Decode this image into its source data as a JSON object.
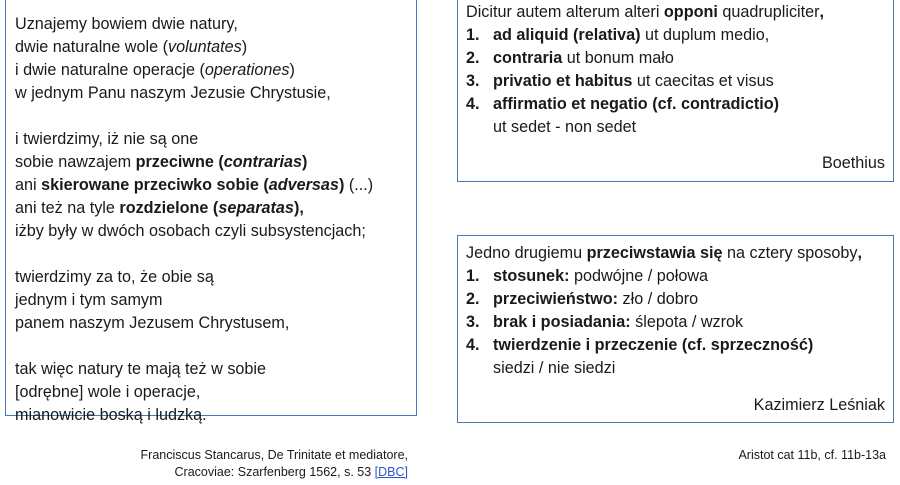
{
  "left": {
    "p1": [
      "Uznajemy bowiem dwie natury,",
      "dwie naturalne wole (",
      "voluntates",
      ")",
      "i dwie naturalne operacje (",
      "operationes",
      ")",
      "w jednym Panu naszym Jezusie Chrystusie,"
    ],
    "p2": {
      "l1": "i twierdzimy, iż nie są one",
      "l2a": "sobie nawzajem ",
      "l2b": "przeciwne (",
      "l2c": "contrarias",
      "l2d": ")",
      "l3a": "ani ",
      "l3b": "skierowane przeciwko sobie (",
      "l3c": "adversas",
      "l3d": ")",
      "l3e": " (...)",
      "l4a": "ani też na tyle ",
      "l4b": "rozdzielone (",
      "l4c": "separatas",
      "l4d": "),",
      "l5": "iżby były w dwóch osobach czyli subsystencjach;"
    },
    "p3": [
      "twierdzimy za to, że obie są",
      "jednym i tym samym",
      "panem naszym Jezusem Chrystusem,"
    ],
    "p4": [
      "tak więc natury te mają też w sobie",
      "[odrębne] wole i operacje,",
      "mianowicie boską i ludzką."
    ]
  },
  "latin": {
    "intro_a": "Dicitur autem alterum alteri ",
    "intro_b": "opponi",
    "intro_c": " quadrupliciter",
    "intro_d": ",",
    "items": [
      {
        "num": "1.",
        "bold": "ad aliquid (relativa)",
        "rest": " ut duplum medio,"
      },
      {
        "num": "2.",
        "bold": "contraria",
        "rest": " ut bonum mało"
      },
      {
        "num": "3.",
        "bold": "privatio et habitus",
        "rest": " ut caecitas et visus"
      },
      {
        "num": "4.",
        "bold": "affirmatio et negatio (cf. contradictio)",
        "rest": ""
      }
    ],
    "tail": "ut sedet - non sedet",
    "author": "Boethius"
  },
  "polish": {
    "intro_a": "Jedno drugiemu ",
    "intro_b": "przeciwstawia się",
    "intro_c": " na cztery sposoby",
    "intro_d": ",",
    "items": [
      {
        "num": "1.",
        "bold": "stosunek:",
        "rest": " podwójne / połowa"
      },
      {
        "num": "2.",
        "bold": "przeciwieństwo:",
        "rest": " zło / dobro"
      },
      {
        "num": "3.",
        "bold": "brak i posiadania:",
        "rest": " ślepota / wzrok"
      },
      {
        "num": "4.",
        "bold": "twierdzenie i przeczenie (cf. sprzeczność)",
        "rest": ""
      }
    ],
    "tail": "siedzi / nie siedzi",
    "author": "Kazimierz Leśniak"
  },
  "captions": {
    "left_line1": "Franciscus Stancarus, De Trinitate et mediatore,",
    "left_line2": "Cracoviae: Szarfenberg 1562, s. 53 ",
    "left_link": "[DBC]",
    "right": "Aristot cat 11b, cf. 11b-13a"
  }
}
